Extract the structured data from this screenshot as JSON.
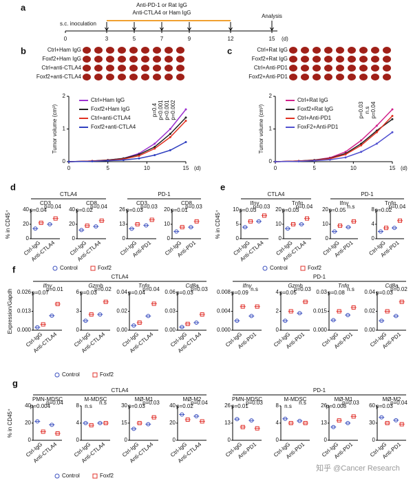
{
  "panel_a": {
    "label": "a",
    "treatment_lines": [
      "Anti-PD-1 or Rat IgG",
      "Anti-CTLA4 or Ham IgG"
    ],
    "start_label": "s.c. inoculation",
    "end_label": "Analysis",
    "days": [
      0,
      3,
      5,
      7,
      9,
      12,
      15
    ],
    "unit": "(d)"
  },
  "panel_b": {
    "label": "b",
    "photo_rows": [
      "Ctrl+Ham IgG",
      "Foxf2+Ham IgG",
      "Ctrl+anti-CTLA4",
      "Foxf2+anti-CTLA4"
    ],
    "chart": {
      "type": "line",
      "ylabel": "Tumor volume (cm³)",
      "xlabel": "(d)",
      "x": [
        0,
        3,
        5,
        7,
        9,
        11,
        13,
        15
      ],
      "xlim": [
        0,
        15
      ],
      "xticks": [
        0,
        5,
        10,
        15
      ],
      "ylim": [
        0,
        2
      ],
      "yticks": [
        0,
        1,
        2
      ],
      "series": [
        {
          "name": "Ctrl+Ham IgG",
          "color": "#9b30d0",
          "values": [
            0,
            0.02,
            0.05,
            0.1,
            0.25,
            0.55,
            1.0,
            1.6
          ]
        },
        {
          "name": "Foxf2+Ham IgG",
          "color": "#222222",
          "values": [
            0,
            0.02,
            0.05,
            0.1,
            0.22,
            0.45,
            0.85,
            1.35
          ]
        },
        {
          "name": "Ctrl+anti-CTLA4",
          "color": "#e03020",
          "values": [
            0,
            0.02,
            0.04,
            0.08,
            0.18,
            0.4,
            0.75,
            1.25
          ]
        },
        {
          "name": "Foxf2+anti-CTLA4",
          "color": "#3040c0",
          "values": [
            0,
            0.01,
            0.03,
            0.05,
            0.1,
            0.2,
            0.35,
            0.6
          ]
        }
      ],
      "pvalues": [
        "p=0.4",
        "p<0.001",
        "p<0.001",
        "p=0.002"
      ]
    }
  },
  "panel_c": {
    "label": "c",
    "photo_rows": [
      "Ctrl+Rat IgG",
      "Foxf2+Rat IgG",
      "Ctrl+Anti-PD1",
      "Foxf2+Anti-PD1"
    ],
    "chart": {
      "type": "line",
      "ylabel": "Tumor volume (cm³)",
      "xlabel": "(d)",
      "x": [
        0,
        3,
        5,
        7,
        9,
        11,
        13,
        15
      ],
      "xlim": [
        0,
        15
      ],
      "xticks": [
        0,
        5,
        10,
        15
      ],
      "ylim": [
        0,
        2
      ],
      "yticks": [
        0,
        1,
        2
      ],
      "series": [
        {
          "name": "Ctrl+Rat IgG",
          "color": "#d0208a",
          "values": [
            0,
            0.02,
            0.05,
            0.12,
            0.3,
            0.65,
            1.1,
            1.6
          ]
        },
        {
          "name": "Foxf2+Rat IgG",
          "color": "#222222",
          "values": [
            0,
            0.02,
            0.05,
            0.1,
            0.25,
            0.55,
            0.95,
            1.3
          ]
        },
        {
          "name": "Ctrl+Anti-PD1",
          "color": "#e03020",
          "values": [
            0,
            0.02,
            0.04,
            0.09,
            0.22,
            0.5,
            0.9,
            1.4
          ]
        },
        {
          "name": "FoxF2+Anti-PD1",
          "color": "#5050d0",
          "values": [
            0,
            0.01,
            0.03,
            0.06,
            0.13,
            0.3,
            0.55,
            0.9
          ]
        }
      ],
      "pvalues": [
        "p=0.03",
        "n.s",
        "p=0.04"
      ]
    }
  },
  "panel_d": {
    "label": "d",
    "ylabel": "% in CD45⁺",
    "series": [
      {
        "name": "Control",
        "color": "#3a4fbf"
      },
      {
        "name": "Foxf2",
        "color": "#e0302a"
      }
    ],
    "groups": [
      {
        "title": "CTLA4",
        "xlabels": [
          "Ctrl-IgG",
          "Anti-CTLA4"
        ],
        "plots": [
          {
            "title": "CD3",
            "ylim": [
              0,
              40
            ],
            "yticks": [
              0,
              20,
              40
            ],
            "pvalues": [
              "p=0.04",
              "p=0.04"
            ],
            "means": [
              14,
              22,
              20,
              28
            ]
          },
          {
            "title": "CD8",
            "ylim": [
              0,
              40
            ],
            "yticks": [
              0,
              20,
              40
            ],
            "pvalues": [
              "p=0.02",
              "p=0.04"
            ],
            "means": [
              12,
              18,
              17,
              25
            ]
          }
        ]
      },
      {
        "title": "PD-1",
        "xlabels": [
          "Ctrl-IgG",
          "Anti-PD1"
        ],
        "plots": [
          {
            "title": "CD3",
            "ylim": [
              0,
              26
            ],
            "yticks": [
              0,
              13,
              26
            ],
            "pvalues": [
              "p=0.03",
              "p=0.03"
            ],
            "means": [
              9,
              13,
              12,
              17
            ]
          },
          {
            "title": "CD8",
            "ylim": [
              0,
              20
            ],
            "yticks": [
              0,
              10,
              20
            ],
            "pvalues": [
              "p=0.01",
              "p=0.03"
            ],
            "means": [
              5,
              8,
              8,
              12
            ]
          }
        ]
      }
    ]
  },
  "panel_e": {
    "label": "e",
    "ylabel": "% in CD45⁺",
    "series": [
      {
        "name": "Control",
        "color": "#3a4fbf"
      },
      {
        "name": "Foxf2",
        "color": "#e0302a"
      }
    ],
    "groups": [
      {
        "title": "CTLA4",
        "xlabels": [
          "Ctrl-IgG",
          "Anti-CTLA4"
        ],
        "plots": [
          {
            "title": "Ifnγ",
            "ylim": [
              0,
              10
            ],
            "yticks": [
              0,
              5,
              10
            ],
            "pvalues": [
              "p=0.03",
              "p=0.03"
            ],
            "means": [
              4,
              6,
              6,
              8
            ]
          },
          {
            "title": "Tnfα",
            "ylim": [
              0,
              20
            ],
            "yticks": [
              0,
              10,
              20
            ],
            "pvalues": [
              "p=0.03",
              "p=0.04"
            ],
            "means": [
              7,
              10,
              10,
              14
            ]
          }
        ]
      },
      {
        "title": "PD-1",
        "xlabels": [
          "Ctrl-IgG",
          "Anti-PD1"
        ],
        "plots": [
          {
            "title": "Ifnγ",
            "ylim": [
              0,
              20
            ],
            "yticks": [
              0,
              10,
              20
            ],
            "pvalues": [
              "p=0.05",
              "n.s"
            ],
            "means": [
              5,
              9,
              8,
              12
            ]
          },
          {
            "title": "Tnfα",
            "ylim": [
              0,
              8
            ],
            "yticks": [
              0,
              4,
              8
            ],
            "pvalues": [
              "p=0.02",
              "p=0.04"
            ],
            "means": [
              2,
              3,
              3,
              5
            ]
          }
        ]
      }
    ]
  },
  "panel_f": {
    "label": "f",
    "ylabel": "Expression/Gapdh",
    "series": [
      {
        "name": "Control",
        "color": "#3a4fbf"
      },
      {
        "name": "Foxf2",
        "color": "#e0302a"
      }
    ],
    "groups": [
      {
        "title": "CTLA4",
        "xlabels": [
          "Ctrl-IgG",
          "Anti-CTLA4"
        ],
        "plots": [
          {
            "title": "Ifnγ",
            "ylim": [
              0,
              0.026
            ],
            "yticks": [
              {
                "value": 0,
                "label": "0.000"
              },
              0.013,
              0.026
            ],
            "pvalues": [
              "p=0.07",
              "p=0.01"
            ],
            "means": [
              0.002,
              0.004,
              0.01,
              0.018
            ]
          },
          {
            "title": "Gzmb",
            "ylim": [
              0,
              6
            ],
            "yticks": [
              0,
              3,
              6
            ],
            "pvalues": [
              "p=0.03",
              "p=0.02"
            ],
            "means": [
              1.5,
              2.5,
              2.5,
              4.5
            ]
          },
          {
            "title": "Tnfα",
            "ylim": [
              0,
              0.04
            ],
            "yticks": [
              {
                "value": 0,
                "label": "0.00"
              },
              0.02,
              0.04
            ],
            "pvalues": [
              "p=0.04",
              "p=0.04"
            ],
            "means": [
              0.005,
              0.008,
              0.015,
              0.028
            ]
          },
          {
            "title": "Cd8a",
            "ylim": [
              0,
              0.06
            ],
            "yticks": [
              {
                "value": 0,
                "label": "0.00"
              },
              0.03,
              0.06
            ],
            "pvalues": [
              "p=0.03",
              "p=0.03"
            ],
            "means": [
              0.005,
              0.01,
              0.012,
              0.025
            ]
          }
        ]
      },
      {
        "title": "PD-1",
        "xlabels": [
          "Ctrl-IgG",
          "Anti-PD1"
        ],
        "plots": [
          {
            "title": "Ifnγ",
            "ylim": [
              0,
              0.008
            ],
            "yticks": [
              {
                "value": 0,
                "label": "0.000"
              },
              0.004,
              0.008
            ],
            "pvalues": [
              "p=0.09",
              "n.s"
            ],
            "means": [
              0.002,
              0.005,
              0.003,
              0.005
            ]
          },
          {
            "title": "Gzmb",
            "ylim": [
              0,
              4
            ],
            "yticks": [
              0,
              2,
              4
            ],
            "pvalues": [
              "p=0.05",
              "p=0.03"
            ],
            "means": [
              1,
              2,
              1.8,
              3
            ]
          },
          {
            "title": "Tnfα",
            "ylim": [
              0,
              0.03
            ],
            "yticks": [
              {
                "value": 0,
                "label": "0.000"
              },
              0.015,
              0.03
            ],
            "pvalues": [
              "p=0.08",
              "n.s"
            ],
            "means": [
              0.008,
              0.015,
              0.012,
              0.018
            ]
          },
          {
            "title": "Cd8a",
            "ylim": [
              0,
              0.04
            ],
            "yticks": [
              {
                "value": 0,
                "label": "0.00"
              },
              0.02,
              0.04
            ],
            "pvalues": [
              "p=0.03",
              "p=0.02"
            ],
            "means": [
              0.01,
              0.02,
              0.015,
              0.03
            ]
          }
        ]
      }
    ]
  },
  "panel_g": {
    "label": "g",
    "ylabel": "% in CD45⁺",
    "series": [
      {
        "name": "Control",
        "color": "#3a4fbf"
      },
      {
        "name": "Foxf2",
        "color": "#e0302a"
      }
    ],
    "groups": [
      {
        "title": "CTLA4",
        "xlabels": [
          "Ctrl-IgG",
          "Anti-CTLA4"
        ],
        "plots": [
          {
            "title": "PMN-MDSC",
            "ylim": [
              0,
              40
            ],
            "yticks": [
              0,
              20,
              40
            ],
            "pvalues": [
              "p=0.004",
              "p=0.04"
            ],
            "means": [
              22,
              10,
              18,
              8
            ]
          },
          {
            "title": "M-MDSC",
            "ylim": [
              0,
              8
            ],
            "yticks": [
              0,
              4,
              8
            ],
            "pvalues": [
              "n.s",
              "n.s"
            ],
            "means": [
              4,
              3.5,
              4,
              4
            ]
          },
          {
            "title": "MØ-M1",
            "ylim": [
              0,
              30
            ],
            "yticks": [
              0,
              15,
              30
            ],
            "pvalues": [
              "p=0.03",
              "p=0.03"
            ],
            "means": [
              10,
              15,
              14,
              20
            ]
          },
          {
            "title": "MØ-M2",
            "ylim": [
              0,
              40
            ],
            "yticks": [
              0,
              20,
              40
            ],
            "pvalues": [
              "p=0.02",
              "p=0.04"
            ],
            "means": [
              30,
              24,
              28,
              22
            ]
          }
        ]
      },
      {
        "title": "PD-1",
        "xlabels": [
          "Ctrl-IgG",
          "Anti-PD1"
        ],
        "plots": [
          {
            "title": "PMN-MDSC",
            "ylim": [
              0,
              26
            ],
            "yticks": [
              0,
              13,
              26
            ],
            "pvalues": [
              "p=0.01",
              "p=0.03"
            ],
            "means": [
              16,
              10,
              15,
              9
            ]
          },
          {
            "title": "M-MDSC",
            "ylim": [
              0,
              8
            ],
            "yticks": [
              0,
              4,
              8
            ],
            "pvalues": [
              "n.s",
              "n.s"
            ],
            "means": [
              5,
              4,
              4.5,
              4
            ]
          },
          {
            "title": "MØ-M1",
            "ylim": [
              0,
              26
            ],
            "yticks": [
              0,
              13,
              26
            ],
            "pvalues": [
              "p=0.008",
              "p=0.03"
            ],
            "means": [
              10,
              15,
              13,
              18
            ]
          },
          {
            "title": "MØ-M2",
            "ylim": [
              0,
              60
            ],
            "yticks": [
              0,
              30,
              60
            ],
            "pvalues": [
              "p=0.03",
              "p=0.04"
            ],
            "means": [
              40,
              30,
              35,
              28
            ]
          }
        ]
      }
    ]
  },
  "watermark": "知乎 @Cancer Research"
}
